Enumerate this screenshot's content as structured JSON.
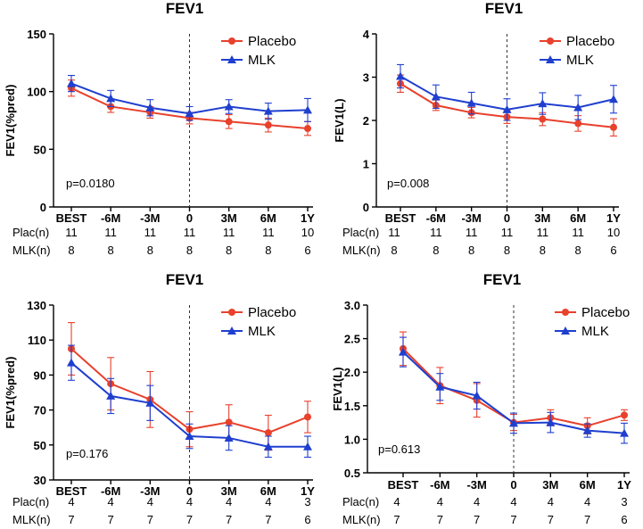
{
  "colors": {
    "placebo": "#e8412c",
    "mlk": "#1f3fcf",
    "axis": "#000000"
  },
  "chart_data": [
    {
      "type": "line",
      "title": "FEV1",
      "ylabel": "FEV1(%pred)",
      "xlabel": "",
      "ylim": [
        0,
        150
      ],
      "yticks": [
        0,
        50,
        100,
        150
      ],
      "ytick_labels": [
        "0",
        "50",
        "100",
        "150"
      ],
      "categories": [
        "BEST",
        "-6M",
        "-3M",
        "0",
        "3M",
        "6M",
        "1Y"
      ],
      "series": [
        {
          "name": "Placebo",
          "marker": "circle",
          "values": [
            103,
            87,
            82,
            77,
            74,
            71,
            68
          ],
          "err": [
            7,
            5,
            5,
            5,
            6,
            6,
            6
          ]
        },
        {
          "name": "MLK",
          "marker": "triangle",
          "values": [
            107,
            94,
            86,
            81,
            87,
            83,
            84
          ],
          "err": [
            7,
            7,
            7,
            6,
            6,
            7,
            10
          ]
        }
      ],
      "legend": [
        "Placebo",
        "MLK"
      ],
      "annotation": "p=0.0180",
      "count_rows": [
        {
          "label": "Plac(n)",
          "values": [
            "11",
            "11",
            "11",
            "11",
            "11",
            "11",
            "10"
          ]
        },
        {
          "label": "MLK(n)",
          "values": [
            "8",
            "8",
            "8",
            "8",
            "8",
            "8",
            "6"
          ]
        }
      ]
    },
    {
      "type": "line",
      "title": "FEV1",
      "ylabel": "FEV1(L)",
      "xlabel": "",
      "ylim": [
        0,
        4
      ],
      "yticks": [
        0,
        1,
        2,
        3,
        4
      ],
      "ytick_labels": [
        "0",
        "1",
        "2",
        "3",
        "4"
      ],
      "categories": [
        "BEST",
        "-6M",
        "-3M",
        "0",
        "3M",
        "6M",
        "1Y"
      ],
      "series": [
        {
          "name": "Placebo",
          "marker": "circle",
          "values": [
            2.85,
            2.35,
            2.18,
            2.08,
            2.03,
            1.93,
            1.84
          ],
          "err": [
            0.2,
            0.12,
            0.12,
            0.15,
            0.15,
            0.18,
            0.2
          ]
        },
        {
          "name": "MLK",
          "marker": "triangle",
          "values": [
            3.02,
            2.55,
            2.4,
            2.25,
            2.39,
            2.3,
            2.49
          ],
          "err": [
            0.27,
            0.27,
            0.25,
            0.25,
            0.25,
            0.28,
            0.32
          ]
        }
      ],
      "legend": [
        "Placebo",
        "MLK"
      ],
      "annotation": "p=0.008",
      "count_rows": [
        {
          "label": "Plac(n)",
          "values": [
            "11",
            "11",
            "11",
            "11",
            "11",
            "11",
            "10"
          ]
        },
        {
          "label": "MLK(n)",
          "values": [
            "8",
            "8",
            "8",
            "8",
            "8",
            "8",
            "6"
          ]
        }
      ]
    },
    {
      "type": "line",
      "title": "FEV1",
      "ylabel": "FEV1(%pred)",
      "xlabel": "",
      "ylim": [
        30,
        130
      ],
      "yticks": [
        30,
        50,
        70,
        90,
        110,
        130
      ],
      "ytick_labels": [
        "30",
        "50",
        "70",
        "90",
        "110",
        "130"
      ],
      "categories": [
        "BEST",
        "-6M",
        "-3M",
        "0",
        "3M",
        "6M",
        "1Y"
      ],
      "series": [
        {
          "name": "Placebo",
          "marker": "circle",
          "values": [
            105,
            85,
            76,
            59,
            63,
            57,
            66
          ],
          "err": [
            15,
            15,
            16,
            10,
            10,
            10,
            9
          ]
        },
        {
          "name": "MLK",
          "marker": "triangle",
          "values": [
            97,
            78,
            74,
            55,
            54,
            49,
            49
          ],
          "err": [
            10,
            10,
            10,
            7,
            7,
            6,
            6
          ]
        }
      ],
      "legend": [
        "Placebo",
        "MLK"
      ],
      "annotation": "p=0.176",
      "count_rows": [
        {
          "label": "Plac(n)",
          "values": [
            "4",
            "4",
            "4",
            "4",
            "4",
            "4",
            "3"
          ]
        },
        {
          "label": "MLK(n)",
          "values": [
            "7",
            "7",
            "7",
            "7",
            "7",
            "7",
            "6"
          ]
        }
      ]
    },
    {
      "type": "line",
      "title": "FEV1",
      "ylabel": "FEV1(L)",
      "xlabel": "",
      "ylim": [
        0.5,
        3.0
      ],
      "yticks": [
        0.5,
        1.0,
        1.5,
        2.0,
        2.5,
        3.0
      ],
      "ytick_labels": [
        "0.5",
        "1.0",
        "1.5",
        "2.0",
        "2.5",
        "3.0"
      ],
      "categories": [
        "BEST",
        "-6M",
        "-3M",
        "0",
        "3M",
        "6M",
        "1Y"
      ],
      "series": [
        {
          "name": "Placebo",
          "marker": "circle",
          "values": [
            2.35,
            1.8,
            1.58,
            1.25,
            1.32,
            1.2,
            1.36
          ],
          "err": [
            0.25,
            0.27,
            0.25,
            0.12,
            0.12,
            0.12,
            0.08
          ]
        },
        {
          "name": "MLK",
          "marker": "triangle",
          "values": [
            2.3,
            1.78,
            1.65,
            1.24,
            1.25,
            1.13,
            1.09
          ],
          "err": [
            0.22,
            0.2,
            0.2,
            0.15,
            0.15,
            0.1,
            0.15
          ]
        }
      ],
      "legend": [
        "Placebo",
        "MLK"
      ],
      "annotation": "p=0.613",
      "count_rows": [
        {
          "label": "Plac(n)",
          "values": [
            "4",
            "4",
            "4",
            "4",
            "4",
            "4",
            "3"
          ]
        },
        {
          "label": "MLK(n)",
          "values": [
            "7",
            "7",
            "7",
            "7",
            "7",
            "7",
            "6"
          ]
        }
      ]
    }
  ]
}
